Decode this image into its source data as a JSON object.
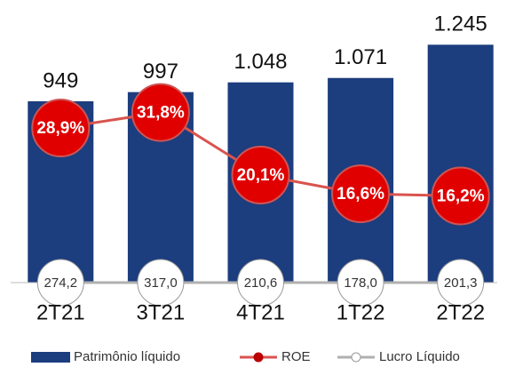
{
  "chart_data": {
    "type": "bar",
    "categories": [
      "2T21",
      "3T21",
      "4T21",
      "1T22",
      "2T22"
    ],
    "ylim": [
      0,
      1400
    ],
    "y2lim": [
      0,
      50
    ],
    "series": [
      {
        "name": "Patrimônio líquido",
        "type": "bar",
        "color": "#1c3d7e",
        "values": [
          949,
          997,
          1048,
          1071,
          1245
        ],
        "value_labels": [
          "949",
          "997",
          "1.048",
          "1.071",
          "1.245"
        ]
      },
      {
        "name": "ROE",
        "type": "line",
        "axis": "y2",
        "color": "#e00000",
        "line_color": "#d9534f",
        "values": [
          28.9,
          31.8,
          20.1,
          16.6,
          16.2
        ],
        "value_labels": [
          "28,9%",
          "31,8%",
          "20,1%",
          "16,6%",
          "16,2%"
        ]
      },
      {
        "name": "Lucro Líquido",
        "type": "line",
        "color": "#b0b0b0",
        "values": [
          274.2,
          317.0,
          210.6,
          178.0,
          201.3
        ],
        "value_labels": [
          "274,2",
          "317,0",
          "210,6",
          "178,0",
          "201,3"
        ]
      }
    ],
    "legend": "bottom"
  }
}
